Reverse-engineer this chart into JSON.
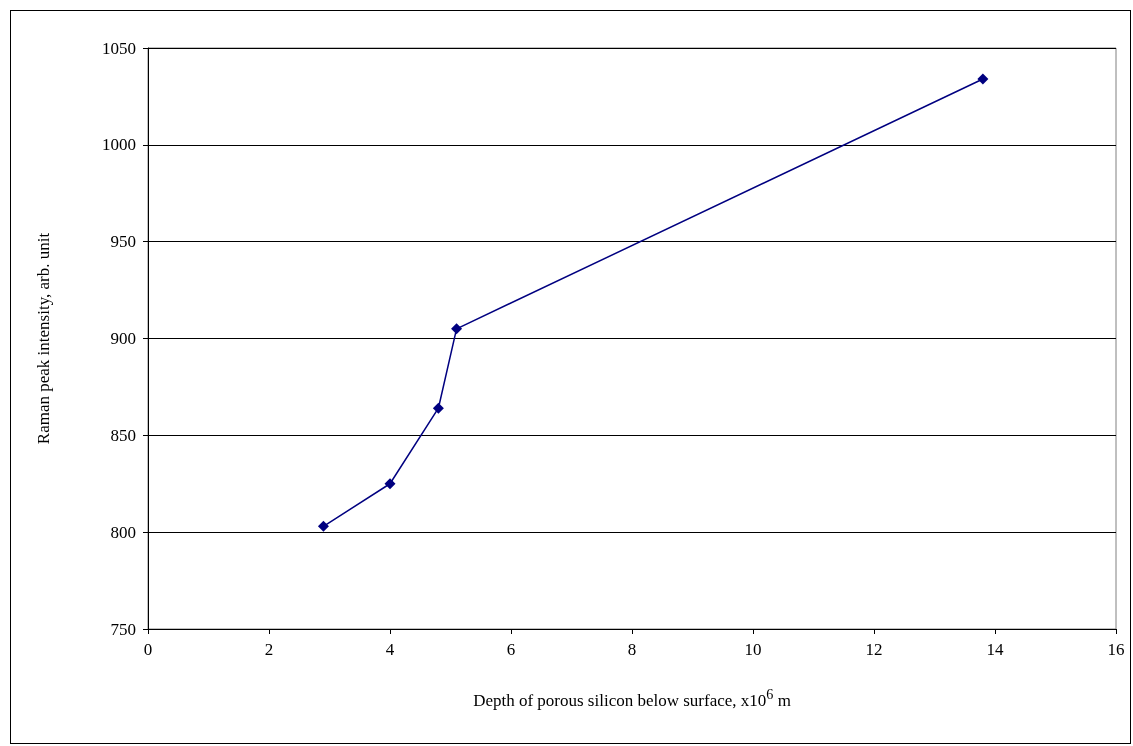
{
  "chart_data": {
    "type": "line",
    "xlabel": "Depth of porous silicon below surface, x10$^{6}$ m",
    "ylabel": "Raman peak intensity, arb. unit",
    "x": [
      2.9,
      4.0,
      4.8,
      5.1,
      13.8
    ],
    "series": [
      {
        "color": "#000080",
        "values": [
          803,
          825,
          864,
          905,
          1034
        ]
      }
    ],
    "xlim": [
      0,
      16
    ],
    "xticks": [
      0,
      2,
      4,
      6,
      8,
      10,
      12,
      14,
      16
    ],
    "ylim": [
      750,
      1050
    ],
    "yticks": [
      750,
      800,
      850,
      900,
      950,
      1000,
      1050
    ],
    "grid": "y",
    "marker": "diamond",
    "line_style": "solid"
  }
}
